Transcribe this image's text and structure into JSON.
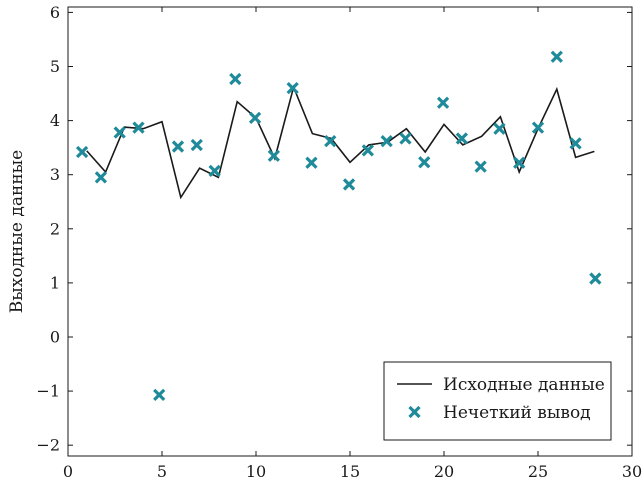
{
  "chart_data": {
    "type": "line",
    "ylabel": "Выходные данные",
    "xlabel": "",
    "xlim": [
      0,
      30
    ],
    "ylim": [
      -2.2,
      6.1
    ],
    "xticks": [
      0,
      5,
      10,
      15,
      20,
      25,
      30
    ],
    "yticks": [
      -2,
      -1,
      0,
      1,
      2,
      3,
      4,
      5,
      6
    ],
    "ytick_labels": [
      "−2",
      "−1",
      "0",
      "1",
      "2",
      "3",
      "4",
      "5",
      "6"
    ],
    "grid": false,
    "legend_position": "lower-right",
    "colors": {
      "line": "#1a1a1a",
      "marker": "#1f8a99"
    },
    "series": [
      {
        "name": "Исходные данные",
        "kind": "line",
        "x": [
          1,
          2,
          3,
          4,
          5,
          6,
          7,
          8,
          9,
          10,
          11,
          12,
          13,
          14,
          15,
          16,
          17,
          18,
          19,
          20,
          21,
          22,
          23,
          24,
          25,
          26,
          27,
          28
        ],
        "y": [
          3.44,
          3.05,
          3.88,
          3.85,
          3.98,
          2.58,
          3.12,
          2.95,
          4.35,
          4.05,
          3.3,
          4.62,
          3.76,
          3.67,
          3.23,
          3.55,
          3.6,
          3.85,
          3.42,
          3.93,
          3.55,
          3.71,
          4.07,
          3.05,
          3.85,
          4.58,
          3.32,
          3.43
        ]
      },
      {
        "name": "Нечеткий вывод",
        "kind": "scatter",
        "x": [
          0.75,
          1.75,
          2.75,
          3.75,
          4.85,
          5.85,
          6.85,
          7.8,
          8.9,
          9.95,
          10.95,
          11.95,
          12.95,
          13.95,
          14.95,
          15.95,
          16.95,
          17.95,
          18.95,
          19.95,
          20.95,
          21.95,
          22.95,
          24.0,
          25.0,
          26.0,
          27.0,
          28.05
        ],
        "y": [
          3.42,
          2.95,
          3.78,
          3.87,
          -1.07,
          3.52,
          3.55,
          3.07,
          4.77,
          4.05,
          3.35,
          4.6,
          3.22,
          3.62,
          2.82,
          3.45,
          3.62,
          3.67,
          3.23,
          4.33,
          3.67,
          3.15,
          3.85,
          3.22,
          3.87,
          5.18,
          3.58,
          1.08
        ]
      }
    ]
  }
}
